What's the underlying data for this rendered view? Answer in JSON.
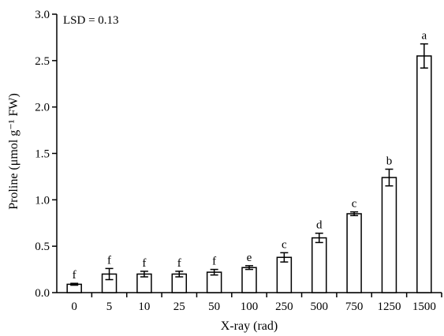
{
  "chart_data": {
    "type": "bar",
    "title": "",
    "annotation": "LSD = 0.13",
    "xlabel": "X-ray (rad)",
    "ylabel": "Proline (μmol g⁻¹ FW)",
    "ylim": [
      0,
      3.0
    ],
    "y_ticks": [
      "0.0",
      "0.5",
      "1.0",
      "1.5",
      "2.0",
      "2.5",
      "3.0"
    ],
    "categories": [
      "0",
      "5",
      "10",
      "25",
      "50",
      "100",
      "250",
      "500",
      "750",
      "1250",
      "1500"
    ],
    "values": [
      0.09,
      0.2,
      0.2,
      0.2,
      0.22,
      0.27,
      0.38,
      0.59,
      0.85,
      1.24,
      2.55
    ],
    "errors": [
      0.01,
      0.06,
      0.03,
      0.03,
      0.03,
      0.02,
      0.05,
      0.05,
      0.02,
      0.09,
      0.13
    ],
    "letters": [
      "f",
      "f",
      "f",
      "f",
      "f",
      "e",
      "c",
      "d",
      "c",
      "b",
      "a"
    ],
    "bar_fill": "#ffffff",
    "bar_stroke": "#000000",
    "grid": false,
    "legend": "none"
  }
}
